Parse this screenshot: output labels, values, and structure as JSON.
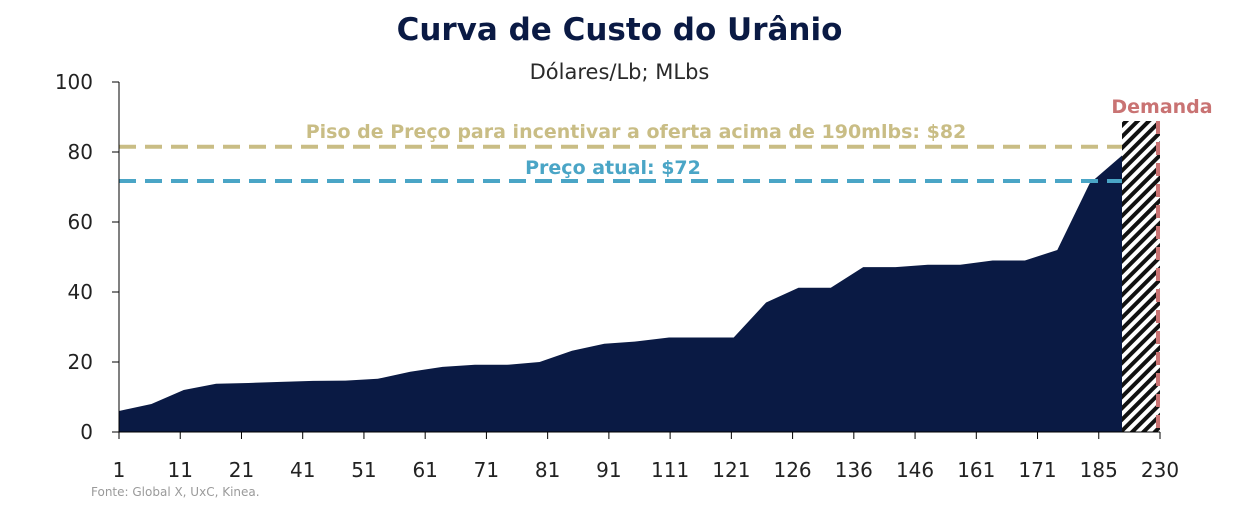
{
  "chart_data": {
    "type": "area",
    "title": "Curva de Custo do Urânio",
    "subtitle": "Dólares/Lb; MLbs",
    "source": "Fonte: Global X, UxC, Kinea.",
    "ylim": [
      0,
      100
    ],
    "yticks": [
      0,
      20,
      40,
      60,
      80,
      100
    ],
    "grid": false,
    "x_tick_labels": [
      "1",
      "11",
      "21",
      "41",
      "51",
      "61",
      "71",
      "81",
      "91",
      "111",
      "121",
      "126",
      "136",
      "146",
      "161",
      "171",
      "185",
      "230"
    ],
    "values": [
      6,
      8,
      12,
      13.8,
      14,
      14.3,
      14.6,
      14.7,
      15.2,
      17.2,
      18.6,
      19.2,
      19.2,
      20,
      23.2,
      25.2,
      25.9,
      27,
      27,
      27,
      37,
      41.2,
      41.2,
      47.1,
      47.1,
      47.8,
      47.8,
      49,
      49,
      52,
      71,
      79
    ],
    "demand_hatch_label": "",
    "reference_lines": [
      {
        "name": "Piso de Preço para incentivar a oferta acima de 190mlbs: $82",
        "value": 81.5,
        "color": "#c9bd85"
      },
      {
        "name": "Preço atual: $72",
        "value": 71.7,
        "color": "#4aa5c6"
      }
    ],
    "demand": {
      "label": "Demanda",
      "color": "#c97373"
    },
    "colors": {
      "area": "#0a1a44",
      "axis": "#000000",
      "title": "#0a1a44"
    }
  }
}
